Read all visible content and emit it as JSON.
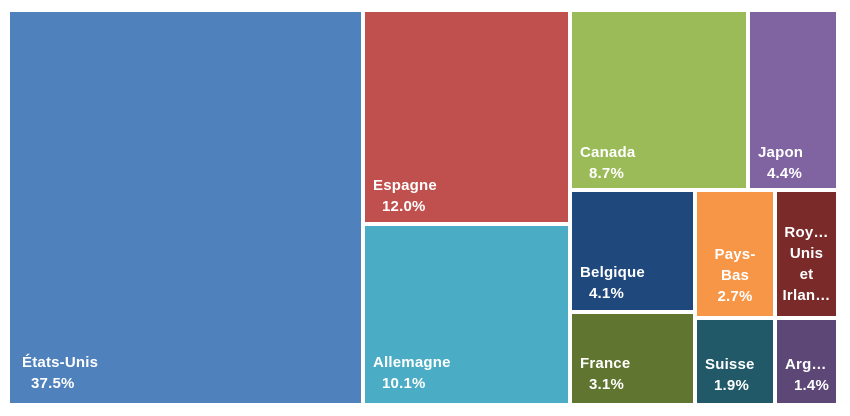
{
  "chart_data": {
    "type": "treemap",
    "title": "",
    "items": [
      {
        "name": "États-Unis",
        "value": 37.5,
        "label": "37.5%",
        "color": "#4f81bd"
      },
      {
        "name": "Espagne",
        "value": 12.0,
        "label": "12.0%",
        "color": "#c0504d"
      },
      {
        "name": "Allemagne",
        "value": 10.1,
        "label": "10.1%",
        "color": "#4bacc6"
      },
      {
        "name": "Canada",
        "value": 8.7,
        "label": "8.7%",
        "color": "#9bbb59"
      },
      {
        "name": "Japon",
        "value": 4.4,
        "label": "4.4%",
        "color": "#8064a2"
      },
      {
        "name": "Belgique",
        "value": 4.1,
        "label": "4.1%",
        "color": "#1f497d"
      },
      {
        "name": "Pays-\nBas",
        "value": 2.7,
        "label": "2.7%",
        "color": "#f79646"
      },
      {
        "name": "Roy…\nUnis\net\nIrlan…",
        "value": 2.3,
        "label": "",
        "color": "#7b2a2a"
      },
      {
        "name": "France",
        "value": 3.1,
        "label": "3.1%",
        "color": "#5f7530"
      },
      {
        "name": "Suisse",
        "value": 1.9,
        "label": "1.9%",
        "color": "#215968"
      },
      {
        "name": "Arg…",
        "value": 1.4,
        "label": "1.4%",
        "color": "#5c4776"
      }
    ]
  }
}
